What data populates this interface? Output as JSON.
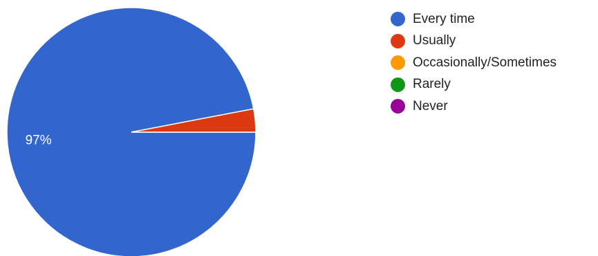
{
  "chart_data": {
    "type": "pie",
    "title": "",
    "categories": [
      "Every time",
      "Usually",
      "Occasionally/Sometimes",
      "Rarely",
      "Never"
    ],
    "values": [
      97,
      3,
      0,
      0,
      0
    ],
    "colors": [
      "#3366cc",
      "#dc3912",
      "#ff9900",
      "#109618",
      "#990099"
    ],
    "data_labels": [
      "97%",
      "",
      "",
      "",
      ""
    ],
    "legend_position": "right",
    "start_angle": "3 o'clock",
    "direction": "clockwise"
  }
}
